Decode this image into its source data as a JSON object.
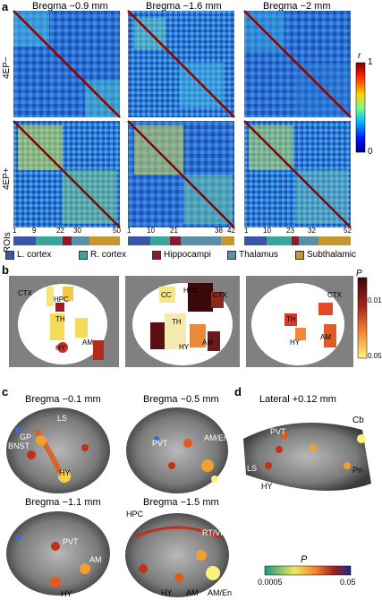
{
  "panel_a": {
    "label": "a",
    "headers": [
      "Bregma −0.9 mm",
      "Bregma −1.6 mm",
      "Bregma −2 mm"
    ],
    "row_labels": [
      "4EP−",
      "4EP+"
    ],
    "rois_label": "ROIs",
    "ticks": [
      [
        "1",
        "9",
        "22",
        "30",
        "50"
      ],
      [
        "1",
        "10",
        "21",
        "38",
        "42"
      ],
      [
        "1",
        "10",
        "23",
        "32",
        "52"
      ]
    ],
    "colorbar": {
      "title": "r",
      "max": "1",
      "min": "0"
    },
    "legend": [
      "L. cortex",
      "R. cortex",
      "Hippocampi",
      "Thalamus",
      "Subthalamic"
    ]
  },
  "panel_b": {
    "label": "b",
    "colorbar": {
      "title": "P",
      "tick1": "0.01",
      "tick2": "0.05"
    },
    "brain1": [
      "CTX",
      "HPC",
      "TH",
      "HY",
      "AM"
    ],
    "brain2": [
      "CC",
      "HPC",
      "CTX",
      "TH",
      "HY",
      "AM"
    ],
    "brain3": [
      "CTX",
      "TH",
      "HY",
      "AM"
    ]
  },
  "panel_c": {
    "label": "c",
    "titles": [
      "Bregma −0.1 mm",
      "Bregma −0.5 mm",
      "Bregma −1.1 mm",
      "Bregma −1.5 mm"
    ],
    "s1": [
      "LS",
      "GP",
      "BNST",
      "HY"
    ],
    "s2": [
      "PVT",
      "AM/En"
    ],
    "s3": [
      "PVT",
      "AM",
      "HY"
    ],
    "s4": [
      "HPC",
      "RT/VPL",
      "HY",
      "AM",
      "AM/En"
    ]
  },
  "panel_d": {
    "label": "d",
    "title": "Lateral +0.12 mm",
    "labels": [
      "Cb",
      "PVT",
      "LS",
      "HY",
      "Pn"
    ],
    "colorbar": {
      "title": "P",
      "min": "0.0005",
      "max": "0.05"
    }
  }
}
